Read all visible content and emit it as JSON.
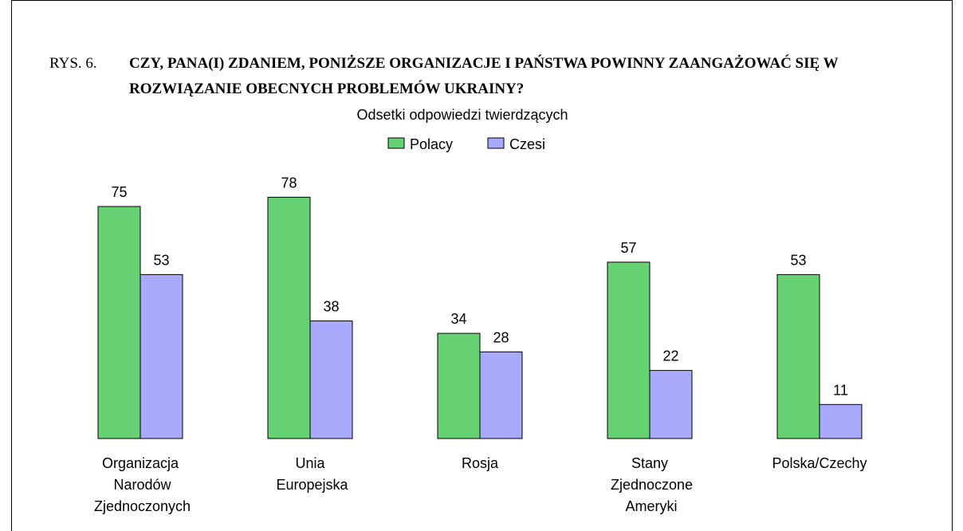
{
  "chart_data": {
    "type": "bar",
    "figure_label": "RYS. 6.",
    "title": "CZY, PANA(I) ZDANIEM, PONIŻSZE ORGANIZACJE I PAŃSTWA POWINNY ZAANGAŻOWAĆ SIĘ W ROZWIĄZANIE OBECNYCH PROBLEMÓW UKRAINY?",
    "subtitle": "Odsetki odpowiedzi twierdzących",
    "categories": [
      "Organizacja Narodów Zjednoczonych",
      "Unia Europejska",
      "Rosja",
      "Stany Zjednoczone Ameryki",
      "Polska/Czechy"
    ],
    "series": [
      {
        "name": "Polacy",
        "color": "#66d273",
        "values": [
          75,
          78,
          34,
          57,
          53
        ]
      },
      {
        "name": "Czesi",
        "color": "#a9a9fc",
        "values": [
          53,
          38,
          28,
          22,
          11
        ]
      }
    ]
  }
}
